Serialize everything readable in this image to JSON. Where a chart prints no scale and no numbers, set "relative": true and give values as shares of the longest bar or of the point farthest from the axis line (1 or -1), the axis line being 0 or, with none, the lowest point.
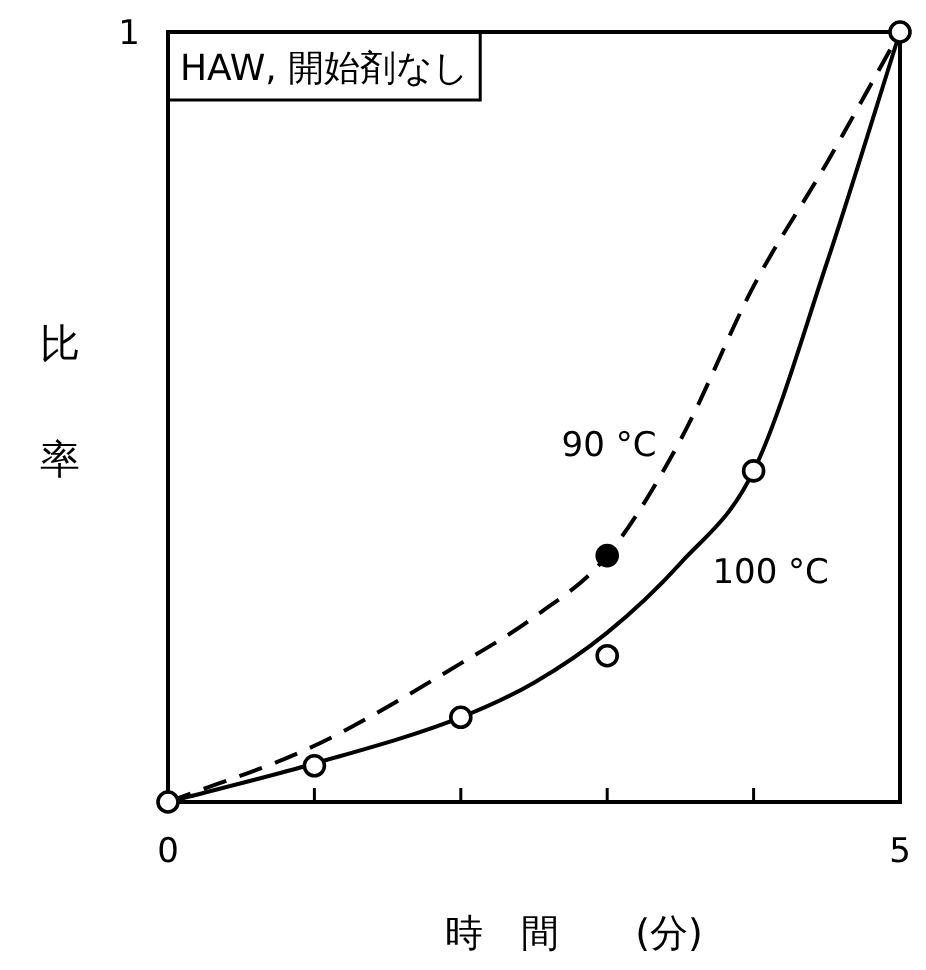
{
  "chart_data": {
    "type": "line",
    "title": "HAW, 開始剤なし",
    "xlabel": "時　間　　(分)",
    "ylabel": "比率",
    "xlim": [
      0,
      5
    ],
    "relative": true,
    "xticks": [
      0,
      {
        "value": 1,
        "label": null
      },
      {
        "value": 2,
        "label": null
      },
      {
        "value": 3,
        "label": null
      },
      {
        "value": 4,
        "label": null
      },
      5
    ],
    "grid": false,
    "legend": false,
    "series": [
      {
        "name": "90 °C",
        "color": "#000000",
        "line_style": "dashed",
        "marker": "none",
        "x": [
          0,
          1,
          2,
          2.5,
          3,
          3.5,
          4,
          4.5,
          5
        ],
        "values": [
          0,
          0.073,
          0.18,
          0.24,
          0.32,
          0.47,
          0.67,
          0.83,
          1
        ]
      },
      {
        "name": "100 °C",
        "color": "#000000",
        "line_style": "solid",
        "marker": "none",
        "x": [
          0,
          1,
          2,
          2.5,
          3,
          3.5,
          4,
          4.5,
          5
        ],
        "values": [
          0,
          0.05,
          0.11,
          0.155,
          0.22,
          0.31,
          0.43,
          0.7,
          1
        ]
      },
      {
        "type": "scatter",
        "color": "#ffffff",
        "marker": "circle",
        "x": [
          0,
          1,
          2,
          3,
          4,
          5
        ],
        "values": [
          0,
          0.047,
          0.11,
          0.19,
          0.43,
          1
        ]
      },
      {
        "type": "scatter",
        "color": "#000000",
        "marker": "circle",
        "x": [
          3
        ],
        "values": [
          0.32
        ]
      }
    ],
    "annotations": [
      "1"
    ]
  }
}
